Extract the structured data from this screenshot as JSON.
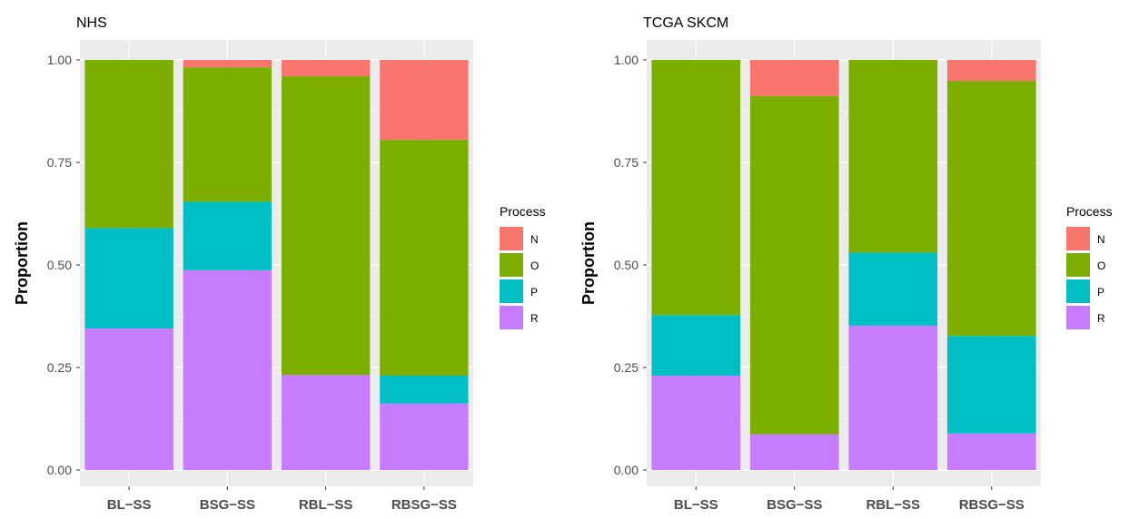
{
  "chart_data": [
    {
      "type": "bar",
      "stacked": true,
      "title": "NHS",
      "xlabel": "",
      "ylabel": "Proportion",
      "ylim": [
        0,
        1
      ],
      "yticks": [
        "0.00",
        "0.25",
        "0.50",
        "0.75",
        "1.00"
      ],
      "categories": [
        "BL−SS",
        "BSG−SS",
        "RBL−SS",
        "RBSG−SS"
      ],
      "series": [
        {
          "name": "R",
          "color": "#C77CFF",
          "values": [
            0.345,
            0.487,
            0.232,
            0.162
          ]
        },
        {
          "name": "P",
          "color": "#00BFC4",
          "values": [
            0.245,
            0.167,
            0.0,
            0.068
          ]
        },
        {
          "name": "O",
          "color": "#7CAE00",
          "values": [
            0.41,
            0.328,
            0.728,
            0.575
          ]
        },
        {
          "name": "N",
          "color": "#F8766D",
          "values": [
            0.0,
            0.018,
            0.04,
            0.195
          ]
        }
      ],
      "legend": {
        "title": "Process",
        "position": "right",
        "items": [
          "N",
          "O",
          "P",
          "R"
        ]
      },
      "grid": true
    },
    {
      "type": "bar",
      "stacked": true,
      "title": "TCGA SKCM",
      "xlabel": "",
      "ylabel": "Proportion",
      "ylim": [
        0,
        1
      ],
      "yticks": [
        "0.00",
        "0.25",
        "0.50",
        "0.75",
        "1.00"
      ],
      "categories": [
        "BL−SS",
        "BSG−SS",
        "RBL−SS",
        "RBSG−SS"
      ],
      "series": [
        {
          "name": "R",
          "color": "#C77CFF",
          "values": [
            0.23,
            0.087,
            0.352,
            0.089
          ]
        },
        {
          "name": "P",
          "color": "#00BFC4",
          "values": [
            0.148,
            0.0,
            0.178,
            0.238
          ]
        },
        {
          "name": "O",
          "color": "#7CAE00",
          "values": [
            0.622,
            0.825,
            0.47,
            0.622
          ]
        },
        {
          "name": "N",
          "color": "#F8766D",
          "values": [
            0.0,
            0.088,
            0.0,
            0.051
          ]
        }
      ],
      "legend": {
        "title": "Process",
        "position": "right",
        "items": [
          "N",
          "O",
          "P",
          "R"
        ]
      },
      "grid": true
    }
  ]
}
